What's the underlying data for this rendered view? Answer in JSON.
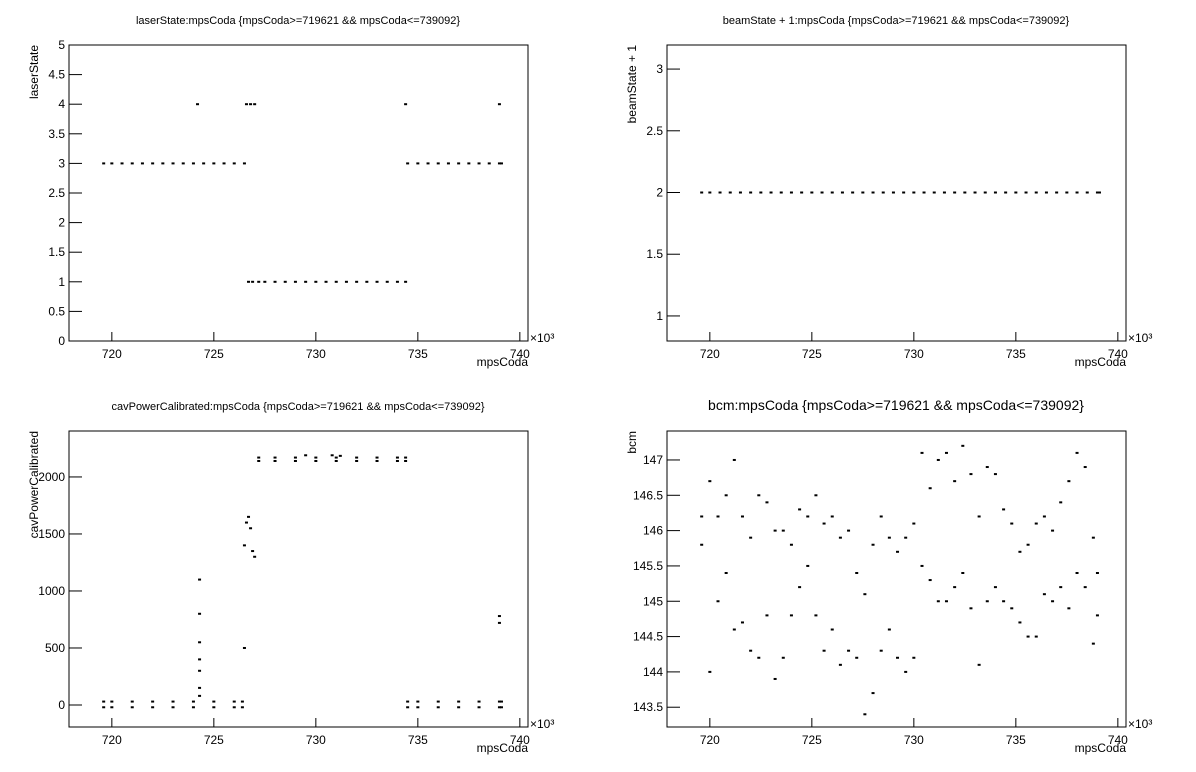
{
  "chart_data": [
    {
      "type": "scatter",
      "title": "laserState:mpsCoda {mpsCoda>=719621 && mpsCoda<=739092}",
      "x_label": "mpsCoda",
      "y_label": "laserState",
      "x_exponent": "×10³",
      "color": "#000000",
      "xlim": [
        717.9,
        740.4
      ],
      "ylim": [
        0,
        5
      ],
      "xticks": [
        720,
        725,
        730,
        735,
        740
      ],
      "yticks": [
        0,
        0.5,
        1,
        1.5,
        2,
        2.5,
        3,
        3.5,
        4,
        4.5,
        5
      ],
      "x": [
        719.6,
        720,
        720.5,
        721,
        721.5,
        722,
        722.5,
        723,
        723.5,
        724,
        724.5,
        725,
        725.5,
        726,
        726.5,
        724.2,
        726.6,
        726.8,
        727.0,
        734.4,
        739.0,
        726.7,
        726.9,
        727.2,
        727.5,
        728,
        728.5,
        729,
        729.5,
        730,
        730.5,
        731,
        731.5,
        732,
        732.5,
        733,
        733.5,
        734,
        734.4,
        734.5,
        735,
        735.5,
        736,
        736.5,
        737,
        737.5,
        738,
        738.5,
        739,
        739.1
      ],
      "values": [
        3,
        3,
        3,
        3,
        3,
        3,
        3,
        3,
        3,
        3,
        3,
        3,
        3,
        3,
        3,
        4,
        4,
        4,
        4,
        4,
        4,
        1,
        1,
        1,
        1,
        1,
        1,
        1,
        1,
        1,
        1,
        1,
        1,
        1,
        1,
        1,
        1,
        1,
        1,
        3,
        3,
        3,
        3,
        3,
        3,
        3,
        3,
        3,
        3,
        3
      ]
    },
    {
      "type": "scatter",
      "title": "beamState + 1:mpsCoda {mpsCoda>=719621 && mpsCoda<=739092}",
      "x_label": "mpsCoda",
      "y_label": "beamState + 1",
      "x_exponent": "×10³",
      "color": "#000000",
      "xlim": [
        717.9,
        740.4
      ],
      "ylim": [
        0.797,
        3.195
      ],
      "xticks": [
        720,
        725,
        730,
        735,
        740
      ],
      "yticks": [
        1,
        1.5,
        2,
        2.5,
        3
      ],
      "x": [
        719.6,
        720,
        720.5,
        721,
        721.5,
        722,
        722.5,
        723,
        723.5,
        724,
        724.5,
        725,
        725.5,
        726,
        726.5,
        727,
        727.5,
        728,
        728.5,
        729,
        729.5,
        730,
        730.5,
        731,
        731.5,
        732,
        732.5,
        733,
        733.5,
        734,
        734.5,
        735,
        735.5,
        736,
        736.5,
        737,
        737.5,
        738,
        738.5,
        739,
        739.1
      ],
      "values": [
        2,
        2,
        2,
        2,
        2,
        2,
        2,
        2,
        2,
        2,
        2,
        2,
        2,
        2,
        2,
        2,
        2,
        2,
        2,
        2,
        2,
        2,
        2,
        2,
        2,
        2,
        2,
        2,
        2,
        2,
        2,
        2,
        2,
        2,
        2,
        2,
        2,
        2,
        2,
        2,
        2
      ]
    },
    {
      "type": "scatter",
      "title": "cavPowerCalibrated:mpsCoda {mpsCoda>=719621 && mpsCoda<=739092}",
      "x_label": "mpsCoda",
      "y_label": "cavPowerCalibrated",
      "x_exponent": "×10³",
      "color": "#000000",
      "xlim": [
        717.9,
        740.4
      ],
      "ylim": [
        -193,
        2403
      ],
      "xticks": [
        720,
        725,
        730,
        735,
        740
      ],
      "yticks": [
        0,
        500,
        1000,
        1500,
        2000
      ],
      "x": [
        719.6,
        719.6,
        720,
        720,
        721,
        721,
        722,
        722,
        723,
        723,
        724,
        724,
        725,
        725,
        726,
        726,
        726.4,
        726.4,
        724.3,
        724.3,
        724.3,
        724.3,
        724.3,
        724.3,
        724.3,
        726.5,
        726.5,
        726.6,
        726.7,
        726.8,
        726.9,
        727.0,
        727.2,
        727.2,
        728,
        728,
        729,
        729,
        730,
        730,
        731,
        731,
        732,
        732,
        733,
        733,
        734,
        734,
        734.4,
        734.4,
        729.5,
        730.8,
        731.2,
        734.5,
        734.5,
        735,
        735,
        736,
        736,
        737,
        737,
        738,
        738,
        739,
        739,
        739.1,
        739.1,
        739.0,
        739.0
      ],
      "values": [
        30,
        -20,
        30,
        -20,
        30,
        -20,
        30,
        -20,
        30,
        -20,
        30,
        -20,
        30,
        -20,
        30,
        -20,
        30,
        -20,
        1100,
        800,
        550,
        400,
        300,
        150,
        80,
        500,
        1400,
        1600,
        1650,
        1550,
        1350,
        1300,
        2170,
        2140,
        2170,
        2140,
        2170,
        2140,
        2170,
        2140,
        2170,
        2140,
        2170,
        2140,
        2170,
        2140,
        2170,
        2140,
        2170,
        2140,
        2190,
        2190,
        2185,
        30,
        -20,
        30,
        -20,
        30,
        -20,
        30,
        -20,
        30,
        -20,
        30,
        -20,
        30,
        -20,
        780,
        720
      ]
    },
    {
      "type": "scatter",
      "title": "bcm:mpsCoda {mpsCoda>=719621 && mpsCoda<=739092}",
      "x_label": "mpsCoda",
      "y_label": "bcm",
      "x_exponent": "×10³",
      "color": "#000000",
      "xlim": [
        717.9,
        740.4
      ],
      "ylim": [
        143.22,
        147.41
      ],
      "xticks": [
        720,
        725,
        730,
        735,
        740
      ],
      "yticks": [
        143.5,
        144,
        144.5,
        145,
        145.5,
        146,
        146.5,
        147
      ],
      "x": [
        719.6,
        719.6,
        720,
        720,
        720.4,
        720.4,
        720.8,
        720.8,
        721.2,
        721.2,
        721.6,
        721.6,
        722,
        722,
        722.4,
        722.4,
        722.8,
        722.8,
        723.2,
        723.2,
        723.6,
        723.6,
        724,
        724,
        724.4,
        724.4,
        724.8,
        724.8,
        725.2,
        725.2,
        725.6,
        725.6,
        726,
        726,
        726.4,
        726.4,
        726.8,
        726.8,
        727.2,
        727.2,
        727.6,
        727.6,
        728,
        728,
        728.4,
        728.4,
        728.8,
        728.8,
        729.2,
        729.2,
        729.6,
        729.6,
        730,
        730,
        730.4,
        730.4,
        730.8,
        730.8,
        731.2,
        731.2,
        731.6,
        731.6,
        732,
        732,
        732.4,
        732.4,
        732.8,
        732.8,
        733.2,
        733.2,
        733.6,
        733.6,
        734,
        734,
        734.4,
        734.4,
        734.8,
        734.8,
        735.2,
        735.2,
        735.6,
        735.6,
        736,
        736,
        736.4,
        736.4,
        736.8,
        736.8,
        737.2,
        737.2,
        737.6,
        737.6,
        738,
        738,
        738.4,
        738.4,
        738.8,
        738.8,
        739,
        739
      ],
      "values": [
        145.8,
        146.2,
        144.0,
        146.7,
        145.0,
        146.2,
        145.4,
        146.5,
        144.6,
        147.0,
        144.7,
        146.2,
        144.3,
        145.9,
        144.2,
        146.5,
        144.8,
        146.4,
        143.9,
        146.0,
        144.2,
        146.0,
        144.8,
        145.8,
        145.2,
        146.3,
        145.5,
        146.2,
        144.8,
        146.5,
        144.3,
        146.1,
        144.6,
        146.2,
        144.1,
        145.9,
        144.3,
        146.0,
        144.2,
        145.4,
        143.4,
        145.1,
        143.7,
        145.8,
        144.3,
        146.2,
        144.6,
        145.9,
        144.2,
        145.7,
        144.0,
        145.9,
        144.2,
        146.1,
        145.5,
        147.1,
        145.3,
        146.6,
        145.0,
        147.0,
        145.0,
        147.1,
        145.2,
        146.7,
        145.4,
        147.2,
        144.9,
        146.8,
        144.1,
        146.2,
        145.0,
        146.9,
        145.2,
        146.8,
        145.0,
        146.3,
        144.9,
        146.1,
        144.7,
        145.7,
        144.5,
        145.8,
        144.5,
        146.1,
        145.1,
        146.2,
        145.0,
        146.0,
        145.2,
        146.4,
        144.9,
        146.7,
        145.4,
        147.1,
        145.2,
        146.9,
        144.4,
        145.9,
        144.8,
        145.4
      ]
    }
  ]
}
